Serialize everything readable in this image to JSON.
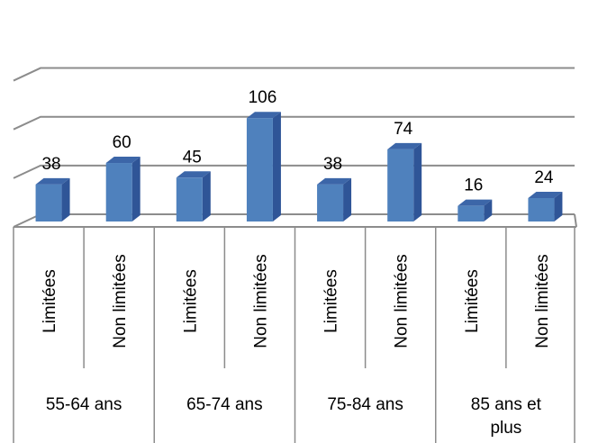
{
  "chart_data": {
    "type": "bar",
    "three_d": true,
    "title": "",
    "xlabel": "",
    "ylabel": "",
    "ylim": [
      0,
      150
    ],
    "grid": true,
    "legend": "none",
    "color": "#4f81bd",
    "categories": [
      {
        "group": "55-64 ans",
        "sub": "Limitées",
        "value": 38
      },
      {
        "group": "55-64 ans",
        "sub": "Non limitées",
        "value": 60
      },
      {
        "group": "65-74 ans",
        "sub": "Limitées",
        "value": 45
      },
      {
        "group": "65-74 ans",
        "sub": "Non limitées",
        "value": 106
      },
      {
        "group": "75-84 ans",
        "sub": "Limitées",
        "value": 38
      },
      {
        "group": "75-84 ans",
        "sub": "Non limitées",
        "value": 74
      },
      {
        "group": "85 ans et plus",
        "sub": "Limitées",
        "value": 16
      },
      {
        "group": "85 ans et plus",
        "sub": "Non limitées",
        "value": 24
      }
    ],
    "groups": [
      "55-64 ans",
      "65-74 ans",
      "75-84 ans",
      "85 ans et plus"
    ]
  }
}
